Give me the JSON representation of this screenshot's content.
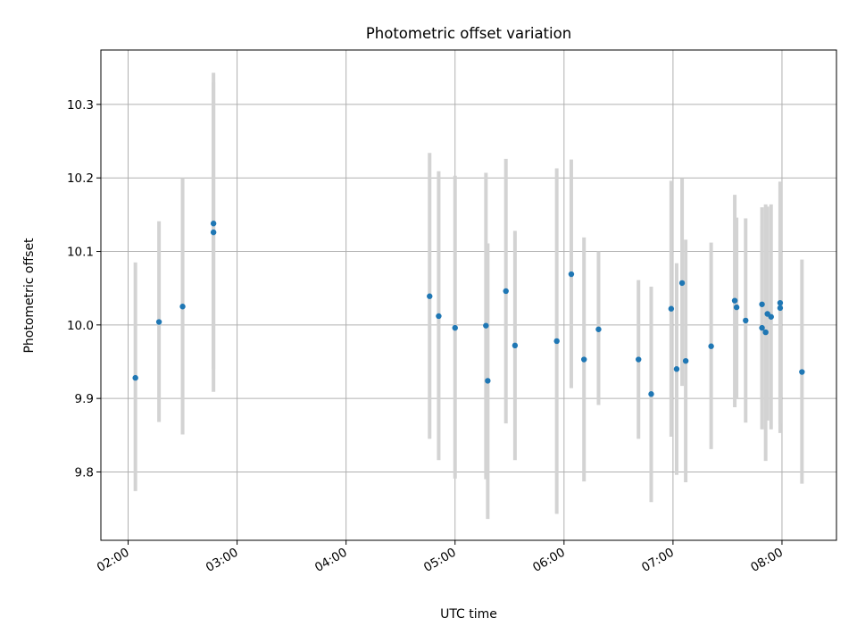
{
  "chart_data": {
    "type": "scatter",
    "title": "Photometric offset variation",
    "xlabel": "UTC time",
    "ylabel": "Photometric offset",
    "x_unit": "UTC time (HH:MM)",
    "xlim": [
      "01:45",
      "08:30"
    ],
    "ylim": [
      9.707,
      10.374
    ],
    "x_ticks": [
      "02:00",
      "03:00",
      "04:00",
      "05:00",
      "06:00",
      "07:00",
      "08:00"
    ],
    "y_ticks": [
      "9.8",
      "9.9",
      "10.0",
      "10.1",
      "10.2",
      "10.3"
    ],
    "y_tick_values": [
      9.8,
      9.9,
      10.0,
      10.1,
      10.2,
      10.3
    ],
    "grid": true,
    "legend": "none",
    "colors": {
      "point": "#1f77b4",
      "error_bar": "#d3d3d3",
      "grid": "#b0b0b0"
    },
    "points": [
      {
        "x": "02:04",
        "y": 9.928,
        "ylow": 9.774,
        "yhigh": 10.085
      },
      {
        "x": "02:17",
        "y": 10.004,
        "ylow": 9.868,
        "yhigh": 10.141
      },
      {
        "x": "02:30",
        "y": 10.025,
        "ylow": 9.851,
        "yhigh": 10.2
      },
      {
        "x": "02:47",
        "y": 10.138,
        "ylow": 9.94,
        "yhigh": 10.33
      },
      {
        "x": "02:47",
        "y": 10.126,
        "ylow": 9.909,
        "yhigh": 10.343
      },
      {
        "x": "04:46",
        "y": 10.039,
        "ylow": 9.845,
        "yhigh": 10.234
      },
      {
        "x": "04:51",
        "y": 10.012,
        "ylow": 9.816,
        "yhigh": 10.209
      },
      {
        "x": "05:00",
        "y": 9.996,
        "ylow": 9.791,
        "yhigh": 10.203
      },
      {
        "x": "05:17",
        "y": 9.999,
        "ylow": 9.79,
        "yhigh": 10.207
      },
      {
        "x": "05:18",
        "y": 9.924,
        "ylow": 9.736,
        "yhigh": 10.111
      },
      {
        "x": "05:28",
        "y": 10.046,
        "ylow": 9.866,
        "yhigh": 10.226
      },
      {
        "x": "05:33",
        "y": 9.972,
        "ylow": 9.816,
        "yhigh": 10.128
      },
      {
        "x": "05:56",
        "y": 9.978,
        "ylow": 9.743,
        "yhigh": 10.213
      },
      {
        "x": "06:04",
        "y": 10.069,
        "ylow": 9.914,
        "yhigh": 10.225
      },
      {
        "x": "06:11",
        "y": 9.953,
        "ylow": 9.787,
        "yhigh": 10.119
      },
      {
        "x": "06:19",
        "y": 9.994,
        "ylow": 9.891,
        "yhigh": 10.1
      },
      {
        "x": "06:41",
        "y": 9.953,
        "ylow": 9.845,
        "yhigh": 10.061
      },
      {
        "x": "06:48",
        "y": 9.906,
        "ylow": 9.759,
        "yhigh": 10.052
      },
      {
        "x": "06:59",
        "y": 10.022,
        "ylow": 9.848,
        "yhigh": 10.196
      },
      {
        "x": "07:02",
        "y": 9.94,
        "ylow": 9.796,
        "yhigh": 10.084
      },
      {
        "x": "07:05",
        "y": 10.057,
        "ylow": 9.917,
        "yhigh": 10.199
      },
      {
        "x": "07:07",
        "y": 9.951,
        "ylow": 9.786,
        "yhigh": 10.116
      },
      {
        "x": "07:21",
        "y": 9.971,
        "ylow": 9.831,
        "yhigh": 10.112
      },
      {
        "x": "07:34",
        "y": 10.033,
        "ylow": 9.888,
        "yhigh": 10.177
      },
      {
        "x": "07:35",
        "y": 10.024,
        "ylow": 9.9,
        "yhigh": 10.146
      },
      {
        "x": "07:40",
        "y": 10.006,
        "ylow": 9.867,
        "yhigh": 10.145
      },
      {
        "x": "07:49",
        "y": 9.996,
        "ylow": 9.858,
        "yhigh": 10.134
      },
      {
        "x": "07:49",
        "y": 10.028,
        "ylow": 9.896,
        "yhigh": 10.16
      },
      {
        "x": "07:51",
        "y": 9.99,
        "ylow": 9.815,
        "yhigh": 10.164
      },
      {
        "x": "07:52",
        "y": 10.015,
        "ylow": 9.87,
        "yhigh": 10.161
      },
      {
        "x": "07:54",
        "y": 10.011,
        "ylow": 9.858,
        "yhigh": 10.164
      },
      {
        "x": "07:59",
        "y": 10.03,
        "ylow": 9.866,
        "yhigh": 10.195
      },
      {
        "x": "07:59",
        "y": 10.023,
        "ylow": 9.853,
        "yhigh": 10.193
      },
      {
        "x": "08:11",
        "y": 9.936,
        "ylow": 9.784,
        "yhigh": 10.089
      }
    ]
  }
}
